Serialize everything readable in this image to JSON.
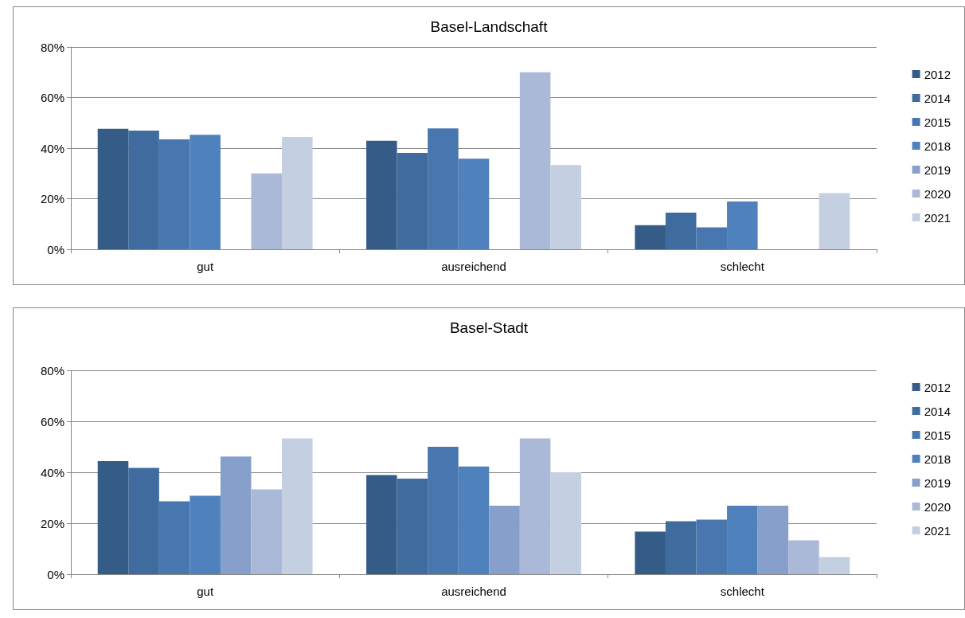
{
  "chart_data": [
    {
      "type": "bar",
      "title": "Basel-Landschaft",
      "categories": [
        "gut",
        "ausreichend",
        "schlecht"
      ],
      "ylim": [
        0,
        80
      ],
      "yticks": [
        {
          "value": 0,
          "label": "0%"
        },
        {
          "value": 20,
          "label": "20%"
        },
        {
          "value": 40,
          "label": "40%"
        },
        {
          "value": 60,
          "label": "60%"
        },
        {
          "value": 80,
          "label": "80%"
        }
      ],
      "grid": "y",
      "legend": "right",
      "series": [
        {
          "name": "2012",
          "color": "#355b87",
          "values": [
            47.6,
            42.9,
            9.5
          ]
        },
        {
          "name": "2014",
          "color": "#3f6b9e",
          "values": [
            46.9,
            38.1,
            14.5
          ]
        },
        {
          "name": "2015",
          "color": "#4876ae",
          "values": [
            43.5,
            47.8,
            8.7
          ]
        },
        {
          "name": "2018",
          "color": "#4f81bd",
          "values": [
            45.3,
            35.8,
            18.9
          ]
        },
        {
          "name": "2019",
          "color": "#86a0cb",
          "values": [
            null,
            null,
            null
          ]
        },
        {
          "name": "2020",
          "color": "#aab9d8",
          "values": [
            30.0,
            70.0,
            null
          ]
        },
        {
          "name": "2021",
          "color": "#c5cfe2",
          "values": [
            44.4,
            33.3,
            22.2
          ]
        }
      ]
    },
    {
      "type": "bar",
      "title": "Basel-Stadt",
      "categories": [
        "gut",
        "ausreichend",
        "schlecht"
      ],
      "ylim": [
        0,
        80
      ],
      "yticks": [
        {
          "value": 0,
          "label": "0%"
        },
        {
          "value": 20,
          "label": "20%"
        },
        {
          "value": 40,
          "label": "40%"
        },
        {
          "value": 60,
          "label": "60%"
        },
        {
          "value": 80,
          "label": "80%"
        }
      ],
      "grid": "y",
      "legend": "right",
      "series": [
        {
          "name": "2012",
          "color": "#355b87",
          "values": [
            44.4,
            38.9,
            16.7
          ]
        },
        {
          "name": "2014",
          "color": "#3f6b9e",
          "values": [
            41.7,
            37.5,
            20.8
          ]
        },
        {
          "name": "2015",
          "color": "#4876ae",
          "values": [
            28.6,
            50.0,
            21.4
          ]
        },
        {
          "name": "2018",
          "color": "#4f81bd",
          "values": [
            30.8,
            42.3,
            26.9
          ]
        },
        {
          "name": "2019",
          "color": "#86a0cb",
          "values": [
            46.2,
            26.9,
            26.9
          ]
        },
        {
          "name": "2020",
          "color": "#aab9d8",
          "values": [
            33.3,
            53.3,
            13.3
          ]
        },
        {
          "name": "2021",
          "color": "#c5cfe2",
          "values": [
            53.3,
            40.0,
            6.7
          ]
        }
      ]
    }
  ]
}
